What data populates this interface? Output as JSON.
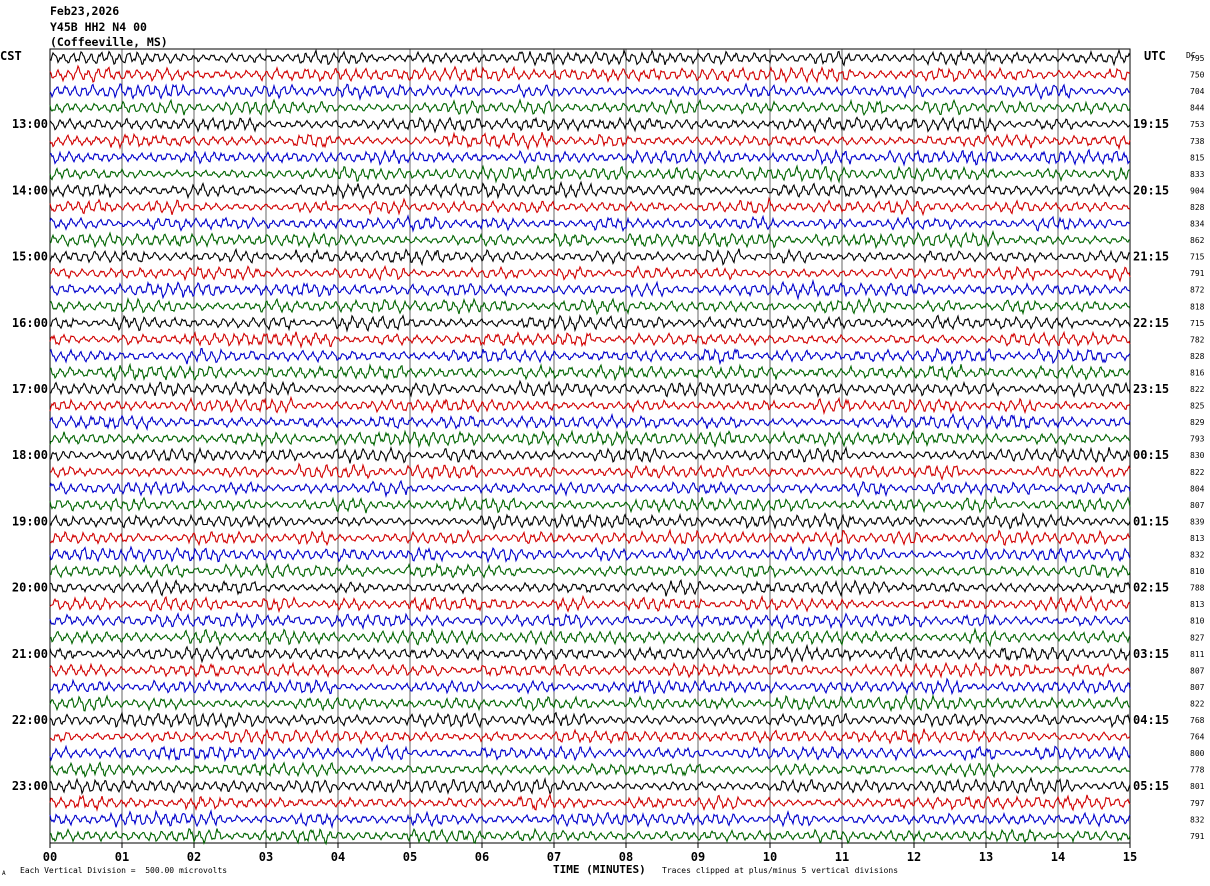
{
  "header": {
    "date": "Feb23,2026",
    "station": "Y45B HH2 N4 00",
    "location": "(Coffeeville, MS)"
  },
  "left_tz": "CST",
  "right_tz": "UTC",
  "dc_label": "DC",
  "footer": {
    "scale": "Each Vertical Division =  500.00 microvolts",
    "clip": "Traces clipped at plus/minus 5 vertical divisions",
    "corner_mark": "A"
  },
  "colors": {
    "trace_cycle": [
      "#000000",
      "#d10000",
      "#0000cc",
      "#006400"
    ],
    "grid": "#000000"
  },
  "chart_data": {
    "type": "line",
    "subtype": "helicorder",
    "xlabel": "TIME (MINUTES)",
    "xlim": [
      0,
      15
    ],
    "x_ticks": [
      "00",
      "01",
      "02",
      "03",
      "04",
      "05",
      "06",
      "07",
      "08",
      "09",
      "10",
      "11",
      "12",
      "13",
      "14",
      "15"
    ],
    "left_hour_labels": [
      "13:00",
      "14:00",
      "15:00",
      "16:00",
      "17:00",
      "18:00",
      "19:00",
      "20:00",
      "21:00",
      "22:00",
      "23:00"
    ],
    "right_hour_labels": [
      "19:15",
      "20:15",
      "21:15",
      "22:15",
      "23:15",
      "00:15",
      "01:15",
      "02:15",
      "03:15",
      "04:15",
      "05:15"
    ],
    "rows_before_first_hour_label": 4,
    "traces_per_hour": 4,
    "dc_offsets": [
      "795",
      "750",
      "704",
      "844",
      "753",
      "738",
      "815",
      "833",
      "904",
      "828",
      "834",
      "862",
      "715",
      "791",
      "872",
      "818",
      "715",
      "782",
      "828",
      "816",
      "822",
      "825",
      "829",
      "793",
      "830",
      "822",
      "804",
      "807",
      "839",
      "813",
      "832",
      "810",
      "788",
      "813",
      "810",
      "827",
      "811",
      "807",
      "807",
      "822",
      "768",
      "764",
      "800",
      "778",
      "801",
      "797",
      "832",
      "791"
    ],
    "grid": true
  }
}
